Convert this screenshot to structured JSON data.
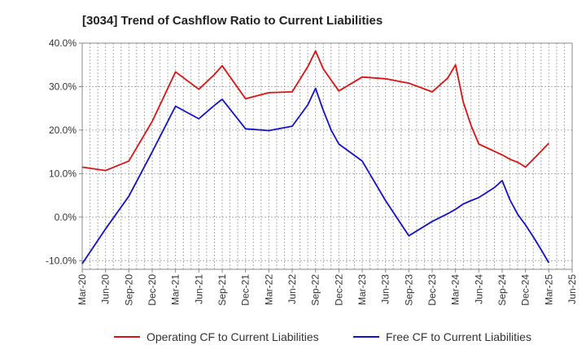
{
  "chart_data": {
    "type": "line",
    "title": "[3034]  Trend of Cashflow Ratio to Current Liabilities",
    "xlabel": "",
    "ylabel": "",
    "ylim": [
      -12,
      40
    ],
    "yticks": [
      -10,
      0,
      10,
      20,
      30,
      40
    ],
    "ytick_labels": [
      "-10.0%",
      "0.0%",
      "10.0%",
      "20.0%",
      "30.0%",
      "40.0%"
    ],
    "grid": true,
    "legend_position": "bottom",
    "x_tick_labels": [
      "Mar-20",
      "Jun-20",
      "Sep-20",
      "Dec-20",
      "Mar-21",
      "Jun-21",
      "Sep-21",
      "Dec-21",
      "Mar-22",
      "Jun-22",
      "Sep-22",
      "Dec-22",
      "Mar-23",
      "Jun-23",
      "Sep-23",
      "Dec-23",
      "Mar-24",
      "Jun-24",
      "Sep-24",
      "Dec-24",
      "Mar-25",
      "Jun-25"
    ],
    "series": [
      {
        "name": "Operating CF to Current Liabilities",
        "color": "#dd1111",
        "points": [
          [
            0,
            11.5
          ],
          [
            1,
            10.7
          ],
          [
            2,
            12.9
          ],
          [
            3,
            22.0
          ],
          [
            4,
            33.4
          ],
          [
            5,
            29.4
          ],
          [
            5.67,
            32.8
          ],
          [
            6,
            34.8
          ],
          [
            7,
            27.2
          ],
          [
            8,
            28.6
          ],
          [
            9,
            28.8
          ],
          [
            9.67,
            34.6
          ],
          [
            10,
            38.2
          ],
          [
            10.33,
            34.1
          ],
          [
            11,
            29.0
          ],
          [
            12,
            32.2
          ],
          [
            13,
            31.8
          ],
          [
            14,
            30.8
          ],
          [
            15,
            28.8
          ],
          [
            15.67,
            32.0
          ],
          [
            16,
            35.0
          ],
          [
            16.33,
            26.5
          ],
          [
            16.67,
            21.0
          ],
          [
            17,
            16.8
          ],
          [
            18,
            14.3
          ],
          [
            18.33,
            13.3
          ],
          [
            18.67,
            12.6
          ],
          [
            19,
            11.5
          ],
          [
            19.5,
            14.2
          ],
          [
            20,
            17.0
          ]
        ]
      },
      {
        "name": "Free CF to Current Liabilities",
        "color": "#1111cc",
        "points": [
          [
            0,
            -10.7
          ],
          [
            1,
            -2.7
          ],
          [
            2,
            4.8
          ],
          [
            3,
            15.0
          ],
          [
            4,
            25.5
          ],
          [
            5,
            22.6
          ],
          [
            5.67,
            25.7
          ],
          [
            6,
            27.1
          ],
          [
            7,
            20.3
          ],
          [
            8,
            19.9
          ],
          [
            9,
            20.9
          ],
          [
            9.67,
            25.8
          ],
          [
            10,
            29.6
          ],
          [
            10.33,
            24.6
          ],
          [
            10.67,
            20.0
          ],
          [
            11,
            16.8
          ],
          [
            12,
            12.9
          ],
          [
            13,
            3.8
          ],
          [
            14,
            -4.3
          ],
          [
            15,
            -1.0
          ],
          [
            15.67,
            0.8
          ],
          [
            16,
            1.8
          ],
          [
            16.33,
            3.0
          ],
          [
            16.67,
            3.8
          ],
          [
            17,
            4.5
          ],
          [
            17.67,
            6.8
          ],
          [
            18,
            8.4
          ],
          [
            18.33,
            4.0
          ],
          [
            18.67,
            0.6
          ],
          [
            19,
            -1.8
          ],
          [
            19.33,
            -4.5
          ],
          [
            19.67,
            -7.5
          ],
          [
            20,
            -10.5
          ]
        ]
      }
    ]
  }
}
